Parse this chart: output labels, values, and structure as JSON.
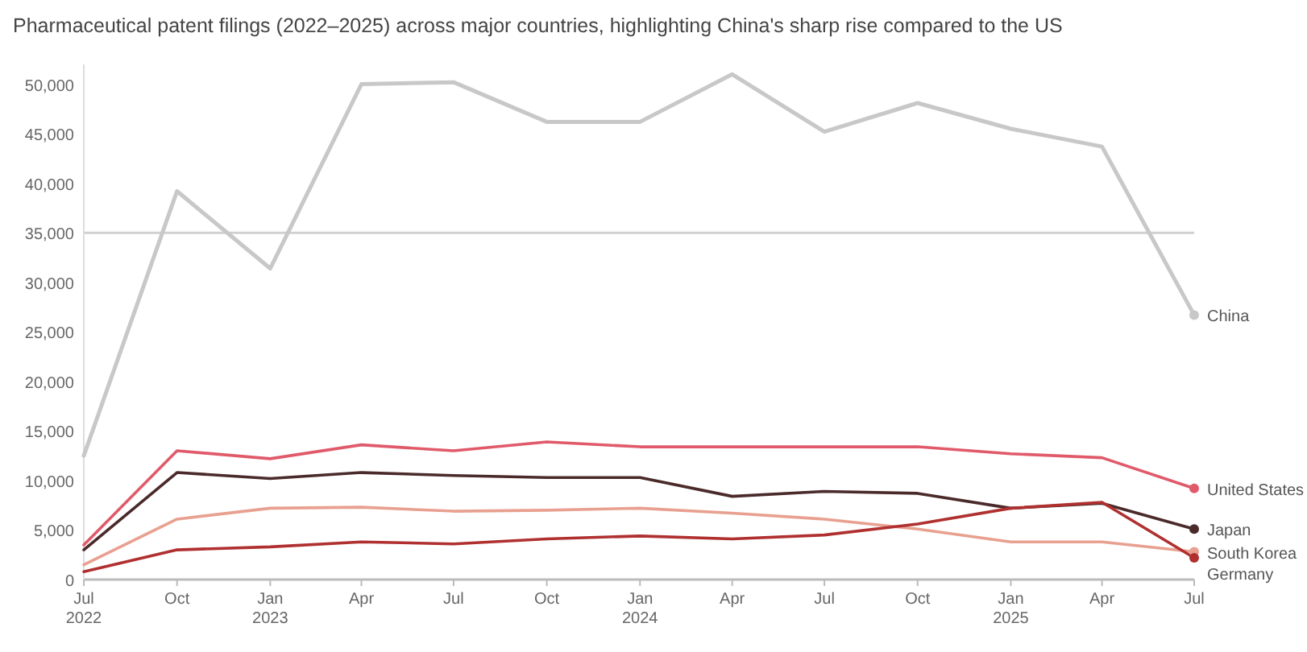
{
  "chart_data": {
    "type": "line",
    "title": "Pharmaceutical patent filings (2022–2025) across major countries, highlighting China's sharp rise compared to the US",
    "x": [
      "2022-07",
      "2022-10",
      "2023-01",
      "2023-04",
      "2023-07",
      "2023-10",
      "2024-01",
      "2024-04",
      "2024-07",
      "2024-10",
      "2025-01",
      "2025-04",
      "2025-07"
    ],
    "xlim": [
      "2022-07",
      "2025-07"
    ],
    "xticks": [
      {
        "value": "2022-07",
        "label": "Jul\n2022"
      },
      {
        "value": "2022-10",
        "label": "Oct"
      },
      {
        "value": "2023-01",
        "label": "Jan\n2023"
      },
      {
        "value": "2023-04",
        "label": "Apr"
      },
      {
        "value": "2023-07",
        "label": "Jul"
      },
      {
        "value": "2023-10",
        "label": "Oct"
      },
      {
        "value": "2024-01",
        "label": "Jan\n2024"
      },
      {
        "value": "2024-04",
        "label": "Apr"
      },
      {
        "value": "2024-07",
        "label": "Jul"
      },
      {
        "value": "2024-10",
        "label": "Oct"
      },
      {
        "value": "2025-01",
        "label": "Jan\n2025"
      },
      {
        "value": "2025-04",
        "label": "Apr"
      },
      {
        "value": "2025-07",
        "label": "Jul"
      }
    ],
    "ylim": [
      0,
      52000
    ],
    "yticks": [
      {
        "value": 0,
        "label": "0"
      },
      {
        "value": 5000,
        "label": "5,000"
      },
      {
        "value": 10000,
        "label": "10,000"
      },
      {
        "value": 15000,
        "label": "15,000"
      },
      {
        "value": 20000,
        "label": "20,000"
      },
      {
        "value": 25000,
        "label": "25,000"
      },
      {
        "value": 30000,
        "label": "30,000"
      },
      {
        "value": 35000,
        "label": "35,000"
      },
      {
        "value": 40000,
        "label": "40,000"
      },
      {
        "value": 45000,
        "label": "45,000"
      },
      {
        "value": 50000,
        "label": "50,000"
      }
    ],
    "ref_lines": [
      {
        "axis": "y",
        "value": 35000,
        "color": "#d0d0d0"
      }
    ],
    "legend": false,
    "marker": "none",
    "line_style": "solid",
    "series": [
      {
        "name": "China",
        "color": "#c8c8c8",
        "values": [
          12500,
          39200,
          31400,
          50000,
          50200,
          46200,
          46200,
          51000,
          45200,
          48100,
          45500,
          43700,
          26700
        ]
      },
      {
        "name": "United States",
        "color": "#e05a6a",
        "values": [
          3500,
          13000,
          12200,
          13600,
          13000,
          13900,
          13400,
          13400,
          13400,
          13400,
          12700,
          12300,
          9200
        ]
      },
      {
        "name": "Japan",
        "color": "#4a2a2a",
        "values": [
          3000,
          10800,
          10200,
          10800,
          10500,
          10300,
          10300,
          8400,
          8900,
          8700,
          7200,
          7700,
          5100
        ]
      },
      {
        "name": "South Korea",
        "color": "#e8a090",
        "values": [
          1500,
          6100,
          7200,
          7300,
          6900,
          7000,
          7200,
          6700,
          6100,
          5100,
          3800,
          3800,
          2800
        ]
      },
      {
        "name": "Germany",
        "color": "#b03030",
        "values": [
          800,
          3000,
          3300,
          3800,
          3600,
          4100,
          4400,
          4100,
          4500,
          5600,
          7200,
          7800,
          2200
        ]
      }
    ]
  }
}
